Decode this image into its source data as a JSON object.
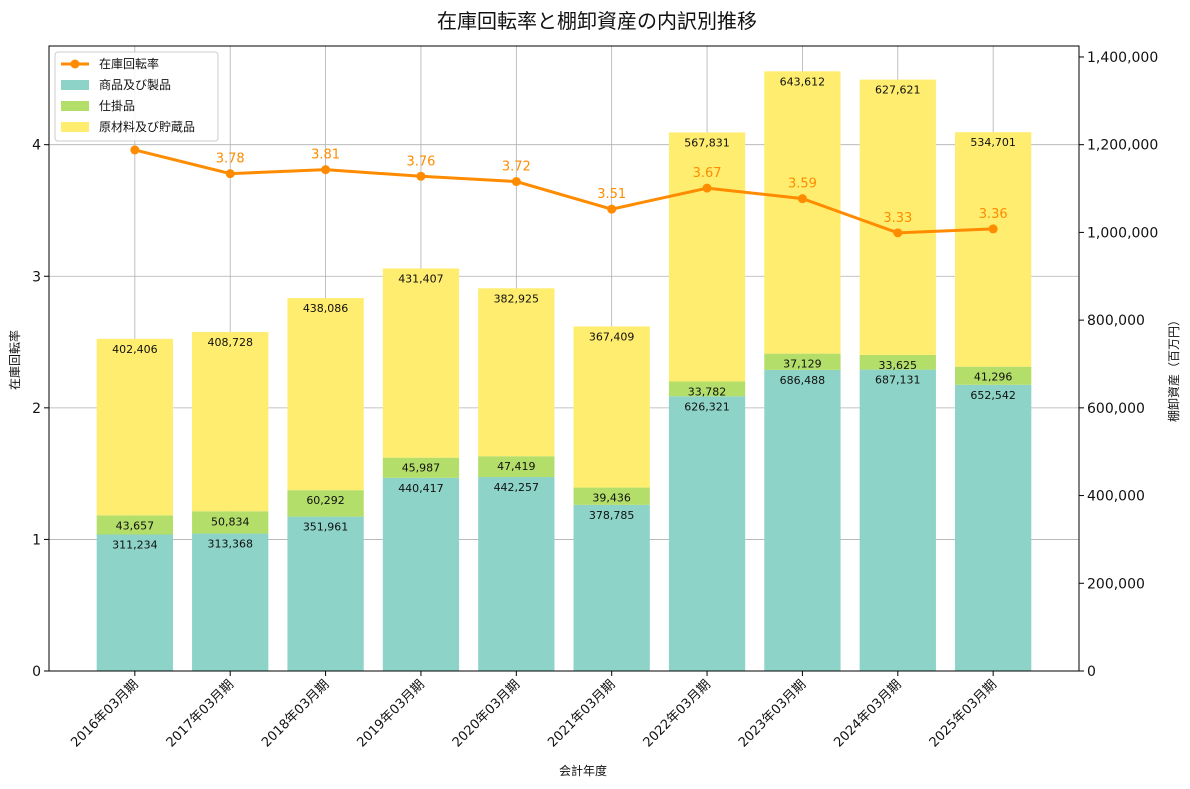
{
  "chart_data": {
    "type": "bar",
    "title": "在庫回転率と棚卸資産の内訳別推移",
    "xlabel": "会計年度",
    "ylabel_left": "在庫回転率",
    "ylabel_right": "棚卸資産（百万円）",
    "categories": [
      "2016年03月期",
      "2017年03月期",
      "2018年03月期",
      "2019年03月期",
      "2020年03月期",
      "2021年03月期",
      "2022年03月期",
      "2023年03月期",
      "2024年03月期",
      "2025年03月期"
    ],
    "stacked": true,
    "ylim_left": [
      0,
      4.75
    ],
    "ylim_right": [
      0,
      1425000
    ],
    "yticks_left": [
      "0",
      "1",
      "2",
      "3",
      "4"
    ],
    "yticks_right": [
      "0",
      "200,000",
      "400,000",
      "600,000",
      "800,000",
      "1,000,000",
      "1,200,000",
      "1,400,000"
    ],
    "grid": true,
    "legend_position": "top-left",
    "series": [
      {
        "name": "商品及び製品",
        "color": "#8dd3c7",
        "values": [
          311234,
          313368,
          351961,
          440417,
          442257,
          378785,
          626321,
          686488,
          687131,
          652542
        ],
        "labels": [
          "311,234",
          "313,368",
          "351,961",
          "440,417",
          "442,257",
          "378,785",
          "626,321",
          "686,488",
          "687,131",
          "652,542"
        ]
      },
      {
        "name": "仕掛品",
        "color": "#b3de69",
        "values": [
          43657,
          50834,
          60292,
          45987,
          47419,
          39436,
          33782,
          37129,
          33625,
          41296
        ],
        "labels": [
          "43,657",
          "50,834",
          "60,292",
          "45,987",
          "47,419",
          "39,436",
          "33,782",
          "37,129",
          "33,625",
          "41,296"
        ]
      },
      {
        "name": "原材料及び貯蔵品",
        "color": "#ffed6f",
        "values": [
          402406,
          408728,
          438086,
          431407,
          382925,
          367409,
          567831,
          643612,
          627621,
          534701
        ],
        "labels": [
          "402,406",
          "408,728",
          "438,086",
          "431,407",
          "382,925",
          "367,409",
          "567,831",
          "643,612",
          "627,621",
          "534,701"
        ]
      }
    ],
    "line": {
      "name": "在庫回転率",
      "color": "#ff8c00",
      "values": [
        3.96,
        3.78,
        3.81,
        3.76,
        3.72,
        3.51,
        3.67,
        3.59,
        3.33,
        3.36
      ],
      "labels": [
        "",
        "3.78",
        "3.81",
        "3.76",
        "3.72",
        "3.51",
        "3.67",
        "3.59",
        "3.33",
        "3.36"
      ]
    }
  }
}
